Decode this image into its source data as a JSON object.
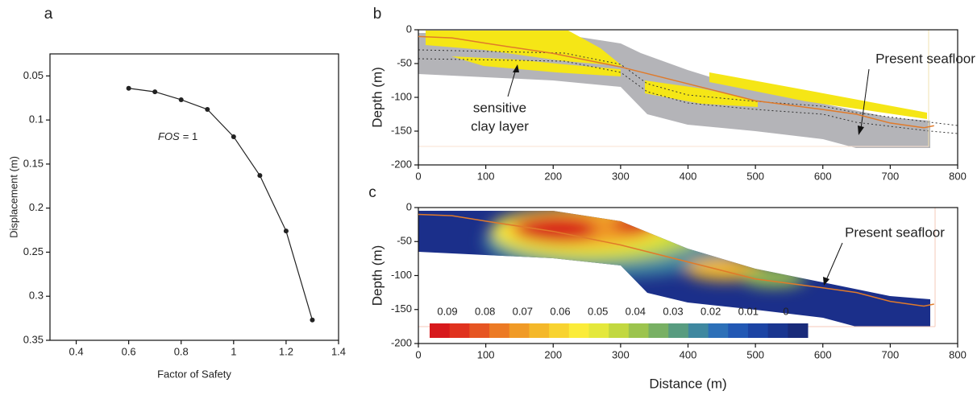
{
  "chart_data": [
    {
      "type": "line",
      "panel": "a",
      "xlabel": "Factor of Safety",
      "ylabel": "Displacement (m)",
      "x": [
        0.6,
        0.7,
        0.8,
        0.9,
        1.0,
        1.1,
        1.2,
        1.3
      ],
      "values": [
        0.064,
        0.068,
        0.077,
        0.088,
        0.119,
        0.163,
        0.226,
        0.327
      ],
      "color": "#222222",
      "xlim": [
        0.3,
        1.4
      ],
      "ylim": [
        0.025,
        0.35
      ],
      "y_inverted": true,
      "xticks": [
        0.4,
        0.6,
        0.8,
        1,
        1.2,
        1.4
      ],
      "yticks": [
        0.05,
        0.1,
        0.15,
        0.2,
        0.25,
        0.3,
        0.35
      ],
      "annotation": {
        "italic": "FOS",
        "text": "= 1"
      }
    },
    {
      "type": "section",
      "panel": "b",
      "ylabel": "Depth (m)",
      "xlim": [
        0,
        800
      ],
      "ylim": [
        -200,
        0
      ],
      "xticks": [
        0,
        100,
        200,
        300,
        400,
        500,
        600,
        700,
        800
      ],
      "yticks": [
        0,
        -50,
        -100,
        -150,
        -200
      ],
      "series": [
        {
          "name": "Present seafloor",
          "color": "#e07a2a",
          "x": [
            0,
            50,
            100,
            200,
            300,
            400,
            500,
            600,
            650,
            700,
            750,
            765
          ],
          "values": [
            -10,
            -12,
            -20,
            -35,
            -55,
            -80,
            -105,
            -118,
            -125,
            -138,
            -145,
            -142
          ]
        }
      ],
      "annotation": [
        "sensitive",
        "clay layer"
      ]
    },
    {
      "type": "section",
      "panel": "c",
      "xlabel": "Distance (m)",
      "ylabel": "Depth (m)",
      "xlim": [
        0,
        800
      ],
      "ylim": [
        -200,
        0
      ],
      "xticks": [
        0,
        100,
        200,
        300,
        400,
        500,
        600,
        700,
        800
      ],
      "yticks": [
        0,
        -50,
        -100,
        -150,
        -200
      ],
      "series": [
        {
          "name": "Present seafloor",
          "color": "#e07a2a",
          "x": [
            0,
            50,
            100,
            200,
            300,
            400,
            500,
            600,
            650,
            700,
            750,
            765
          ],
          "values": [
            -10,
            -12,
            -20,
            -35,
            -55,
            -80,
            -105,
            -118,
            -125,
            -138,
            -145,
            -142
          ]
        }
      ],
      "colorbar": {
        "ticks": [
          0.09,
          0.08,
          0.07,
          0.06,
          0.05,
          0.04,
          0.03,
          0.02,
          0.01,
          0
        ],
        "colors": [
          "#d7191c",
          "#e0321e",
          "#e65522",
          "#ec7a24",
          "#f09a26",
          "#f4b82a",
          "#f8d330",
          "#fbec3a",
          "#e4e83c",
          "#c2d840",
          "#9cc44e",
          "#78b064",
          "#589c80",
          "#3f88a0",
          "#2d70b8",
          "#2258b4",
          "#1c44a4",
          "#1a3690",
          "#192b7a"
        ]
      }
    }
  ]
}
